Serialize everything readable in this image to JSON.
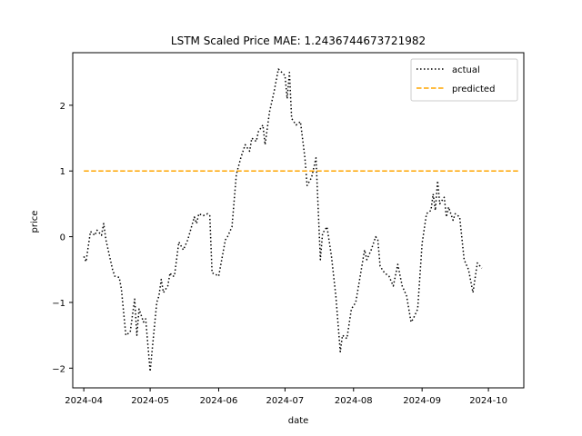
{
  "chart_data": {
    "type": "line",
    "title": "LSTM Scaled Price MAE: 1.2436744673721982",
    "xlabel": "date",
    "ylabel": "price",
    "x_ticks": [
      "2024-04",
      "2024-05",
      "2024-06",
      "2024-07",
      "2024-08",
      "2024-09",
      "2024-10"
    ],
    "y_ticks": [
      "−2",
      "−1",
      "0",
      "1",
      "2"
    ],
    "y_tick_values": [
      -2,
      -1,
      0,
      1,
      2
    ],
    "ylim": [
      -2.3,
      2.8
    ],
    "xlim": [
      "2024-03-27",
      "2024-10-17"
    ],
    "legend_position": "top-right",
    "grid": false,
    "series": [
      {
        "name": "actual",
        "style": "dotted",
        "color": "#000000",
        "points": [
          [
            "2024-04-01",
            -0.3
          ],
          [
            "2024-04-02",
            -0.38
          ],
          [
            "2024-04-04",
            0.08
          ],
          [
            "2024-04-06",
            0.02
          ],
          [
            "2024-04-07",
            0.1
          ],
          [
            "2024-04-09",
            0.02
          ],
          [
            "2024-04-10",
            0.2
          ],
          [
            "2024-04-11",
            -0.05
          ],
          [
            "2024-04-14",
            -0.5
          ],
          [
            "2024-04-15",
            -0.6
          ],
          [
            "2024-04-17",
            -0.62
          ],
          [
            "2024-04-18",
            -0.8
          ],
          [
            "2024-04-20",
            -1.5
          ],
          [
            "2024-04-22",
            -1.45
          ],
          [
            "2024-04-23",
            -1.2
          ],
          [
            "2024-04-24",
            -0.95
          ],
          [
            "2024-04-25",
            -1.5
          ],
          [
            "2024-04-26",
            -1.1
          ],
          [
            "2024-04-28",
            -1.3
          ],
          [
            "2024-04-29",
            -1.25
          ],
          [
            "2024-05-01",
            -2.05
          ],
          [
            "2024-05-02",
            -1.7
          ],
          [
            "2024-05-04",
            -1.0
          ],
          [
            "2024-05-05",
            -0.9
          ],
          [
            "2024-05-06",
            -0.65
          ],
          [
            "2024-05-07",
            -0.85
          ],
          [
            "2024-05-09",
            -0.75
          ],
          [
            "2024-05-10",
            -0.55
          ],
          [
            "2024-05-11",
            -0.6
          ],
          [
            "2024-05-12",
            -0.6
          ],
          [
            "2024-05-14",
            -0.08
          ],
          [
            "2024-05-16",
            -0.2
          ],
          [
            "2024-05-18",
            -0.05
          ],
          [
            "2024-05-21",
            0.3
          ],
          [
            "2024-05-22",
            0.2
          ],
          [
            "2024-05-23",
            0.35
          ],
          [
            "2024-05-25",
            0.32
          ],
          [
            "2024-05-27",
            0.35
          ],
          [
            "2024-05-28",
            0.32
          ],
          [
            "2024-05-29",
            -0.55
          ],
          [
            "2024-05-31",
            -0.58
          ],
          [
            "2024-06-01",
            -0.6
          ],
          [
            "2024-06-04",
            -0.05
          ],
          [
            "2024-06-05",
            0.0
          ],
          [
            "2024-06-07",
            0.15
          ],
          [
            "2024-06-09",
            0.95
          ],
          [
            "2024-06-11",
            1.2
          ],
          [
            "2024-06-13",
            1.4
          ],
          [
            "2024-06-15",
            1.3
          ],
          [
            "2024-06-16",
            1.5
          ],
          [
            "2024-06-18",
            1.45
          ],
          [
            "2024-06-19",
            1.6
          ],
          [
            "2024-06-21",
            1.7
          ],
          [
            "2024-06-22",
            1.4
          ],
          [
            "2024-06-24",
            1.9
          ],
          [
            "2024-06-26",
            2.2
          ],
          [
            "2024-06-28",
            2.55
          ],
          [
            "2024-06-29",
            2.52
          ],
          [
            "2024-07-01",
            2.45
          ],
          [
            "2024-07-02",
            2.1
          ],
          [
            "2024-07-03",
            2.5
          ],
          [
            "2024-07-04",
            1.8
          ],
          [
            "2024-07-06",
            1.7
          ],
          [
            "2024-07-08",
            1.75
          ],
          [
            "2024-07-10",
            1.2
          ],
          [
            "2024-07-11",
            0.78
          ],
          [
            "2024-07-13",
            0.9
          ],
          [
            "2024-07-15",
            1.2
          ],
          [
            "2024-07-17",
            -0.35
          ],
          [
            "2024-07-18",
            0.05
          ],
          [
            "2024-07-20",
            0.15
          ],
          [
            "2024-07-22",
            -0.3
          ],
          [
            "2024-07-24",
            -0.9
          ],
          [
            "2024-07-26",
            -1.75
          ],
          [
            "2024-07-27",
            -1.5
          ],
          [
            "2024-07-29",
            -1.55
          ],
          [
            "2024-07-31",
            -1.1
          ],
          [
            "2024-08-02",
            -1.0
          ],
          [
            "2024-08-04",
            -0.6
          ],
          [
            "2024-08-06",
            -0.2
          ],
          [
            "2024-08-07",
            -0.35
          ],
          [
            "2024-08-09",
            -0.2
          ],
          [
            "2024-08-11",
            0.0
          ],
          [
            "2024-08-12",
            -0.05
          ],
          [
            "2024-08-13",
            -0.45
          ],
          [
            "2024-08-15",
            -0.55
          ],
          [
            "2024-08-17",
            -0.6
          ],
          [
            "2024-08-19",
            -0.75
          ],
          [
            "2024-08-21",
            -0.42
          ],
          [
            "2024-08-23",
            -0.75
          ],
          [
            "2024-08-25",
            -0.9
          ],
          [
            "2024-08-27",
            -1.3
          ],
          [
            "2024-08-28",
            -1.25
          ],
          [
            "2024-08-30",
            -1.1
          ],
          [
            "2024-09-01",
            -0.1
          ],
          [
            "2024-09-03",
            0.35
          ],
          [
            "2024-09-05",
            0.4
          ],
          [
            "2024-09-06",
            0.65
          ],
          [
            "2024-09-07",
            0.4
          ],
          [
            "2024-09-08",
            0.85
          ],
          [
            "2024-09-09",
            0.5
          ],
          [
            "2024-09-11",
            0.6
          ],
          [
            "2024-09-12",
            0.3
          ],
          [
            "2024-09-13",
            0.45
          ],
          [
            "2024-09-15",
            0.25
          ],
          [
            "2024-09-16",
            0.35
          ],
          [
            "2024-09-18",
            0.3
          ],
          [
            "2024-09-20",
            -0.35
          ],
          [
            "2024-09-22",
            -0.5
          ],
          [
            "2024-09-24",
            -0.85
          ],
          [
            "2024-09-26",
            -0.4
          ],
          [
            "2024-09-28",
            -0.48
          ]
        ]
      },
      {
        "name": "predicted",
        "style": "dashed",
        "color": "#FFA500",
        "points": [
          [
            "2024-04-01",
            1.0
          ],
          [
            "2024-10-15",
            1.0
          ]
        ]
      }
    ]
  }
}
